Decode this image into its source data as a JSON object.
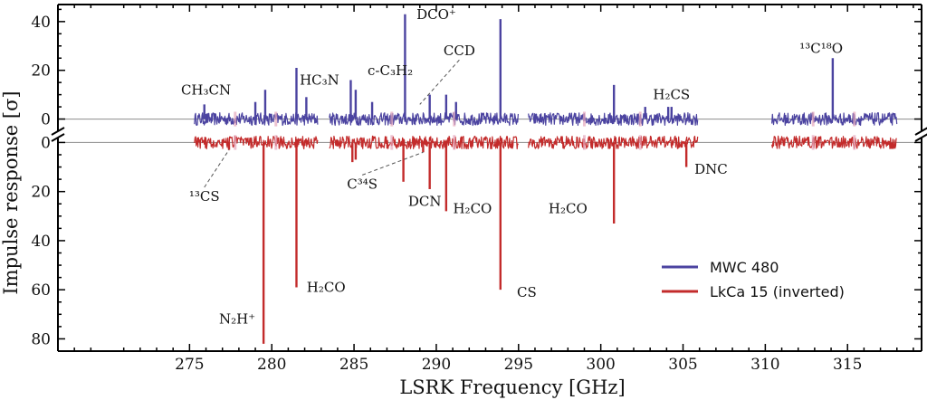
{
  "chart_data": {
    "type": "line",
    "xlabel": "LSRK Frequency [GHz]",
    "ylabel": "Impulse response [σ]",
    "xlim": [
      267,
      319.5
    ],
    "x_ticks": [
      "275",
      "280",
      "285",
      "290",
      "295",
      "300",
      "305",
      "310",
      "315"
    ],
    "upper_panel": {
      "ylim": [
        -5,
        47
      ],
      "y_ticks": [
        "0",
        "20",
        "40"
      ]
    },
    "lower_panel": {
      "ylim": [
        -2,
        85
      ],
      "inverted": true,
      "y_ticks": [
        "0",
        "20",
        "40",
        "60",
        "80"
      ]
    },
    "legend": {
      "position": "lower-right",
      "entries": [
        "MWC 480",
        "LkCa 15 (inverted)"
      ]
    },
    "colors": {
      "MWC 480": "#4b43a0",
      "LkCa 15": "#c32b2b",
      "baseline": "#9a9a9a",
      "gap_marks": "#e6a8bc"
    },
    "spectral_windows_ghz": [
      [
        275.3,
        282.8
      ],
      [
        283.5,
        295.0
      ],
      [
        295.6,
        305.9
      ],
      [
        310.4,
        318.0
      ]
    ],
    "series": [
      {
        "name": "MWC 480",
        "peaks": [
          {
            "x": 275.9,
            "y": 6
          },
          {
            "x": 279.0,
            "y": 7
          },
          {
            "x": 279.6,
            "y": 12
          },
          {
            "x": 281.5,
            "y": 21
          },
          {
            "x": 282.1,
            "y": 9
          },
          {
            "x": 284.8,
            "y": 16
          },
          {
            "x": 285.1,
            "y": 12
          },
          {
            "x": 286.1,
            "y": 7
          },
          {
            "x": 288.1,
            "y": 43
          },
          {
            "x": 289.6,
            "y": 10
          },
          {
            "x": 290.6,
            "y": 10
          },
          {
            "x": 291.2,
            "y": 7
          },
          {
            "x": 293.9,
            "y": 41
          },
          {
            "x": 300.8,
            "y": 14
          },
          {
            "x": 302.7,
            "y": 5
          },
          {
            "x": 304.1,
            "y": 5
          },
          {
            "x": 304.3,
            "y": 5
          },
          {
            "x": 314.1,
            "y": 25
          }
        ]
      },
      {
        "name": "LkCa 15 (inverted)",
        "peaks": [
          {
            "x": 277.4,
            "y": 3
          },
          {
            "x": 279.5,
            "y": 82
          },
          {
            "x": 281.5,
            "y": 59
          },
          {
            "x": 284.9,
            "y": 8
          },
          {
            "x": 285.1,
            "y": 7
          },
          {
            "x": 288.0,
            "y": 16
          },
          {
            "x": 289.2,
            "y": 4
          },
          {
            "x": 289.6,
            "y": 19
          },
          {
            "x": 290.6,
            "y": 28
          },
          {
            "x": 293.9,
            "y": 60
          },
          {
            "x": 300.8,
            "y": 33
          },
          {
            "x": 305.2,
            "y": 10
          }
        ]
      }
    ],
    "annotations": [
      {
        "panel": "upper",
        "text": "CH₃CN",
        "x": 276.0,
        "y": 9,
        "anchor": "middle",
        "baseline": "bottom"
      },
      {
        "panel": "upper",
        "text": "HC₃N",
        "x": 282.9,
        "y": 13,
        "anchor": "middle",
        "baseline": "bottom"
      },
      {
        "panel": "upper",
        "text": "c-C₃H₂",
        "x": 287.2,
        "y": 17,
        "anchor": "middle",
        "baseline": "bottom"
      },
      {
        "panel": "upper",
        "text": "DCO⁺",
        "x": 290.0,
        "y": 40,
        "anchor": "middle",
        "baseline": "bottom"
      },
      {
        "panel": "upper",
        "text": "CCD",
        "x": 291.4,
        "y": 25,
        "anchor": "middle",
        "baseline": "bottom",
        "leader": {
          "x": 289.0,
          "y": 6
        }
      },
      {
        "panel": "upper",
        "text": "H₂CS",
        "x": 304.3,
        "y": 7,
        "anchor": "middle",
        "baseline": "bottom"
      },
      {
        "panel": "upper",
        "text": "¹³C¹⁸O",
        "x": 313.4,
        "y": 26,
        "anchor": "middle",
        "baseline": "bottom"
      },
      {
        "panel": "lower",
        "text": "¹³CS",
        "x": 275.9,
        "y": 19,
        "anchor": "middle",
        "baseline": "top",
        "leader": {
          "x": 277.4,
          "y": 3
        }
      },
      {
        "panel": "lower",
        "text": "N₂H⁺",
        "x": 277.9,
        "y": 69,
        "anchor": "middle",
        "baseline": "top"
      },
      {
        "panel": "lower",
        "text": "H₂CO",
        "x": 283.3,
        "y": 56,
        "anchor": "middle",
        "baseline": "top"
      },
      {
        "panel": "lower",
        "text": "C³⁴S",
        "x": 285.5,
        "y": 14,
        "anchor": "middle",
        "baseline": "top",
        "leader": {
          "x": 289.2,
          "y": 4
        }
      },
      {
        "panel": "lower",
        "text": "DCN",
        "x": 289.3,
        "y": 21,
        "anchor": "middle",
        "baseline": "top"
      },
      {
        "panel": "lower",
        "text": "H₂CO",
        "x": 292.2,
        "y": 24,
        "anchor": "middle",
        "baseline": "top"
      },
      {
        "panel": "lower",
        "text": "H₂CO",
        "x": 298.0,
        "y": 24,
        "anchor": "middle",
        "baseline": "top"
      },
      {
        "panel": "lower",
        "text": "DNC",
        "x": 306.7,
        "y": 8,
        "anchor": "middle",
        "baseline": "top"
      },
      {
        "panel": "lower",
        "text": "CS",
        "x": 295.5,
        "y": 58,
        "anchor": "middle",
        "baseline": "top"
      }
    ]
  }
}
